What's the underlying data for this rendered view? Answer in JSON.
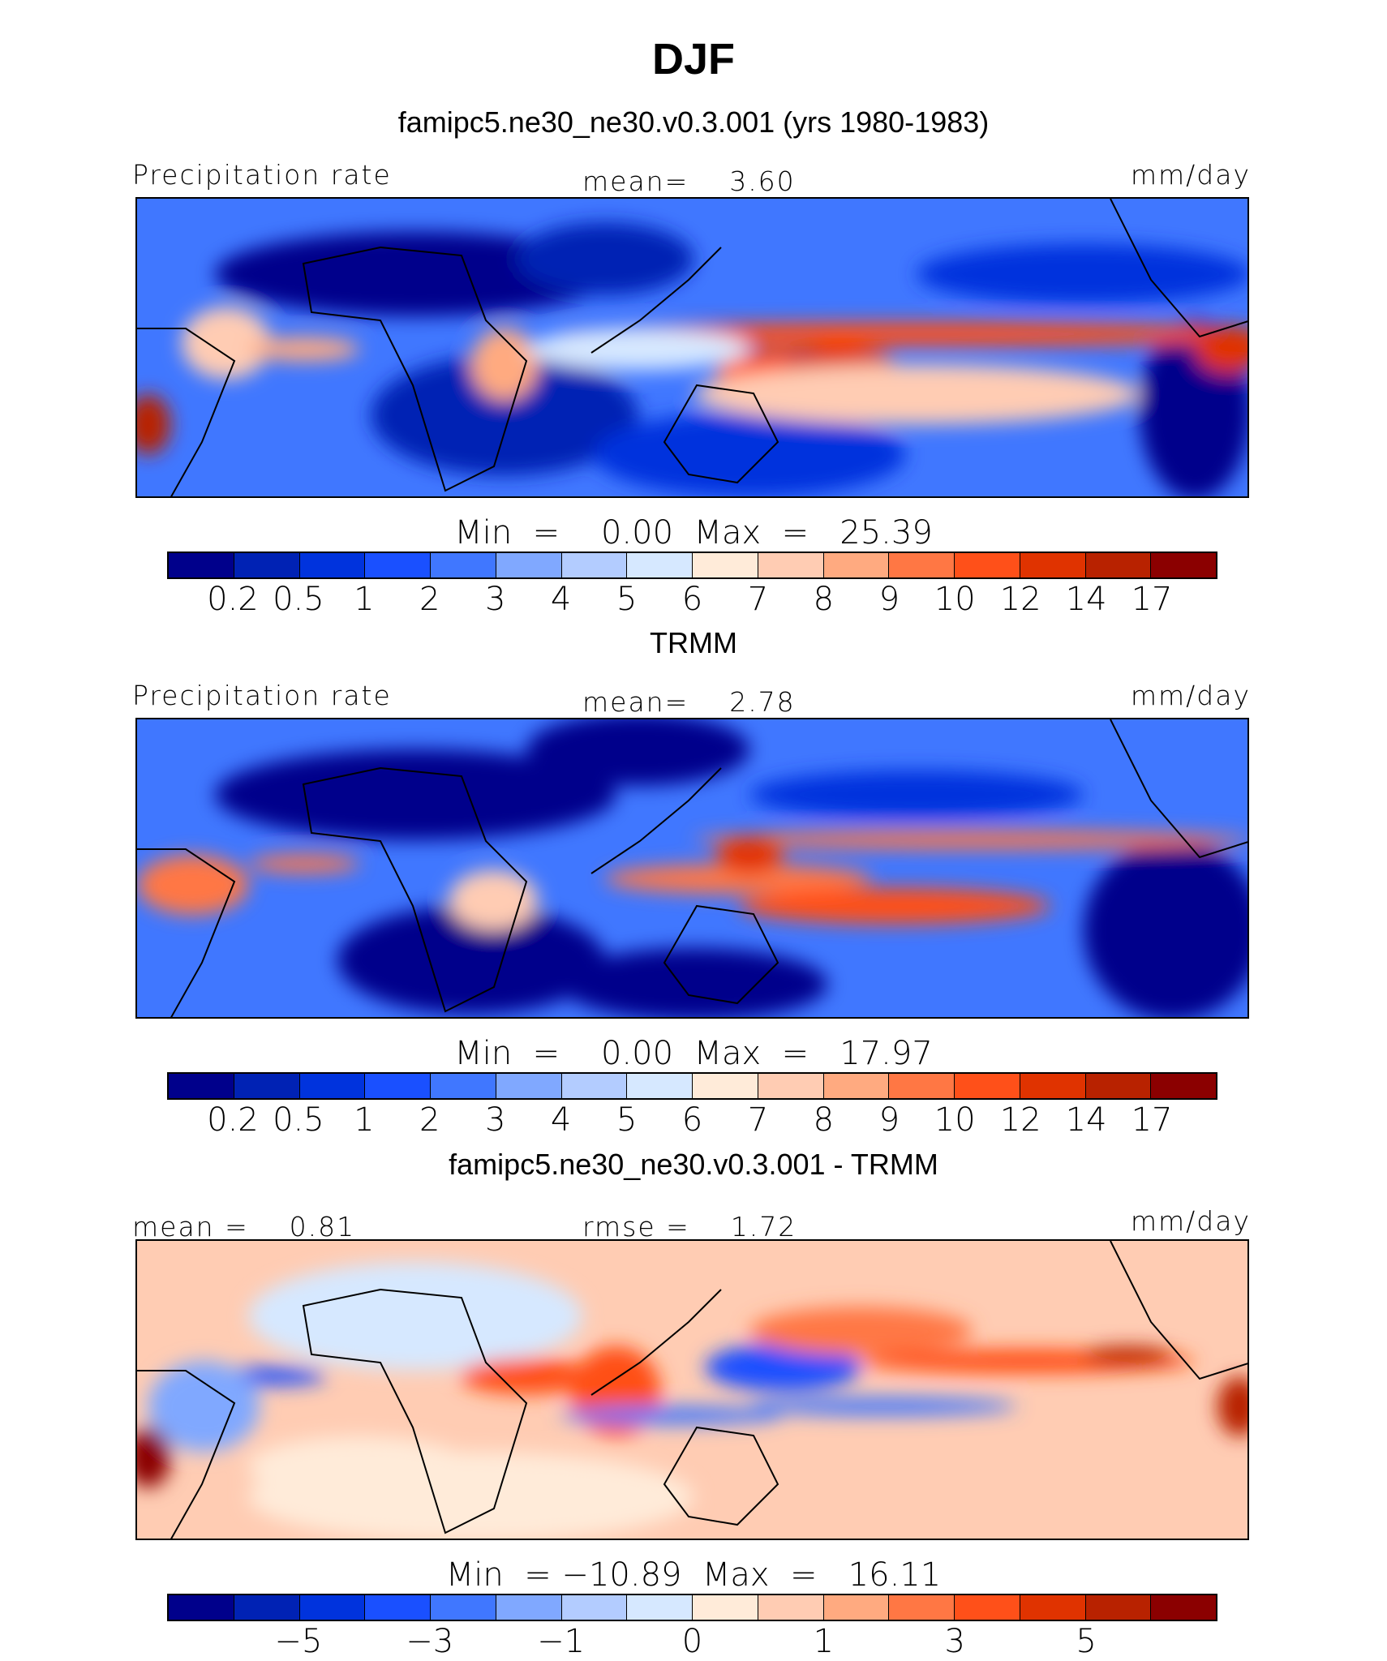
{
  "title": "DJF",
  "colors": [
    "#00008B",
    "#0022B4",
    "#0033DD",
    "#1A50FF",
    "#4077FF",
    "#80A8FF",
    "#B3CCFF",
    "#D6E8FF",
    "#FFEBD9",
    "#FFCCB3",
    "#FFAA80",
    "#FF7744",
    "#FF5019",
    "#E03300",
    "#B82200",
    "#8B0000"
  ],
  "chart_data": [
    {
      "type": "heatmap",
      "title": "famipc5.ne30_ne30.v0.3.001 (yrs 1980-1983)",
      "left_label": "Precipitation rate",
      "center_label": "mean=    3.60",
      "units": "mm/day",
      "minmax": "Min  =    0.00  Max  =   25.39",
      "levels": [
        "0.2",
        "0.5",
        "1",
        "2",
        "3",
        "4",
        "5",
        "6",
        "7",
        "8",
        "9",
        "10",
        "12",
        "14",
        "17"
      ]
    },
    {
      "type": "heatmap",
      "title": "TRMM",
      "left_label": "Precipitation rate",
      "center_label": "mean=    2.78",
      "units": "mm/day",
      "minmax": "Min  =    0.00  Max  =   17.97",
      "levels": [
        "0.2",
        "0.5",
        "1",
        "2",
        "3",
        "4",
        "5",
        "6",
        "7",
        "8",
        "9",
        "10",
        "12",
        "14",
        "17"
      ]
    },
    {
      "type": "heatmap",
      "title": "famipc5.ne30_ne30.v0.3.001 - TRMM",
      "left_label": "mean =    0.81",
      "center_label": "rmse =    1.72",
      "units": "mm/day",
      "minmax": "Min  = −10.89  Max  =   16.11",
      "levels": [
        "",
        "−5",
        "",
        "−3",
        "",
        "−1",
        "",
        "0",
        "",
        "1",
        "",
        "3",
        "",
        "5",
        ""
      ]
    }
  ]
}
